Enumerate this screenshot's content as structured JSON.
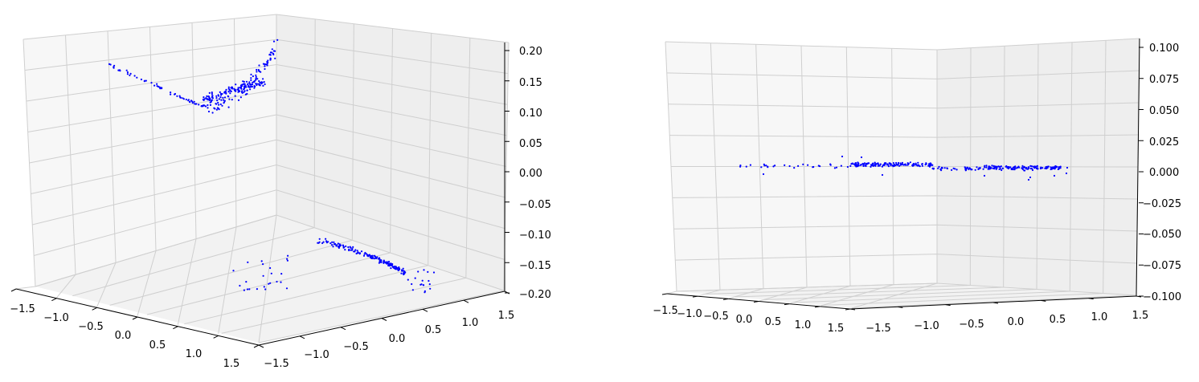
{
  "chart_data": [
    {
      "type": "scatter",
      "projection": "3d",
      "grid": true,
      "point_color": "#0000ff",
      "x_ticks": [
        "−1.5",
        "−1.0",
        "−0.5",
        "0.0",
        "0.5",
        "1.0",
        "1.5"
      ],
      "y_ticks": [
        "−1.5",
        "−1.0",
        "−0.5",
        "0.0",
        "0.5",
        "1.0",
        "1.5"
      ],
      "z_ticks": [
        "0.20",
        "0.15",
        "0.10",
        "0.05",
        "0.00",
        "−0.05",
        "−0.10",
        "−0.15",
        "−0.20"
      ],
      "xlim": [
        -1.5,
        1.5
      ],
      "ylim": [
        -1.5,
        1.5
      ],
      "zlim": [
        -0.2,
        0.2
      ],
      "xlabel": "",
      "ylabel": "",
      "zlabel": ""
    },
    {
      "type": "scatter",
      "projection": "3d",
      "grid": true,
      "point_color": "#0000ff",
      "x_ticks": [
        "−1.5",
        "−1.0",
        "−0.5",
        "0.0",
        "0.5",
        "1.0",
        "1.5"
      ],
      "y_ticks": [
        "−1.5",
        "−1.0",
        "−0.5",
        "0.0",
        "0.5",
        "1.0",
        "1.5"
      ],
      "z_ticks": [
        "0.100",
        "0.075",
        "0.050",
        "0.025",
        "0.000",
        "−0.025",
        "−0.050",
        "−0.075",
        "−0.100"
      ],
      "xlim": [
        -1.5,
        1.5
      ],
      "ylim": [
        -1.5,
        1.5
      ],
      "zlim": [
        -0.1,
        0.1
      ],
      "xlabel": "",
      "ylabel": "",
      "zlabel": ""
    }
  ]
}
